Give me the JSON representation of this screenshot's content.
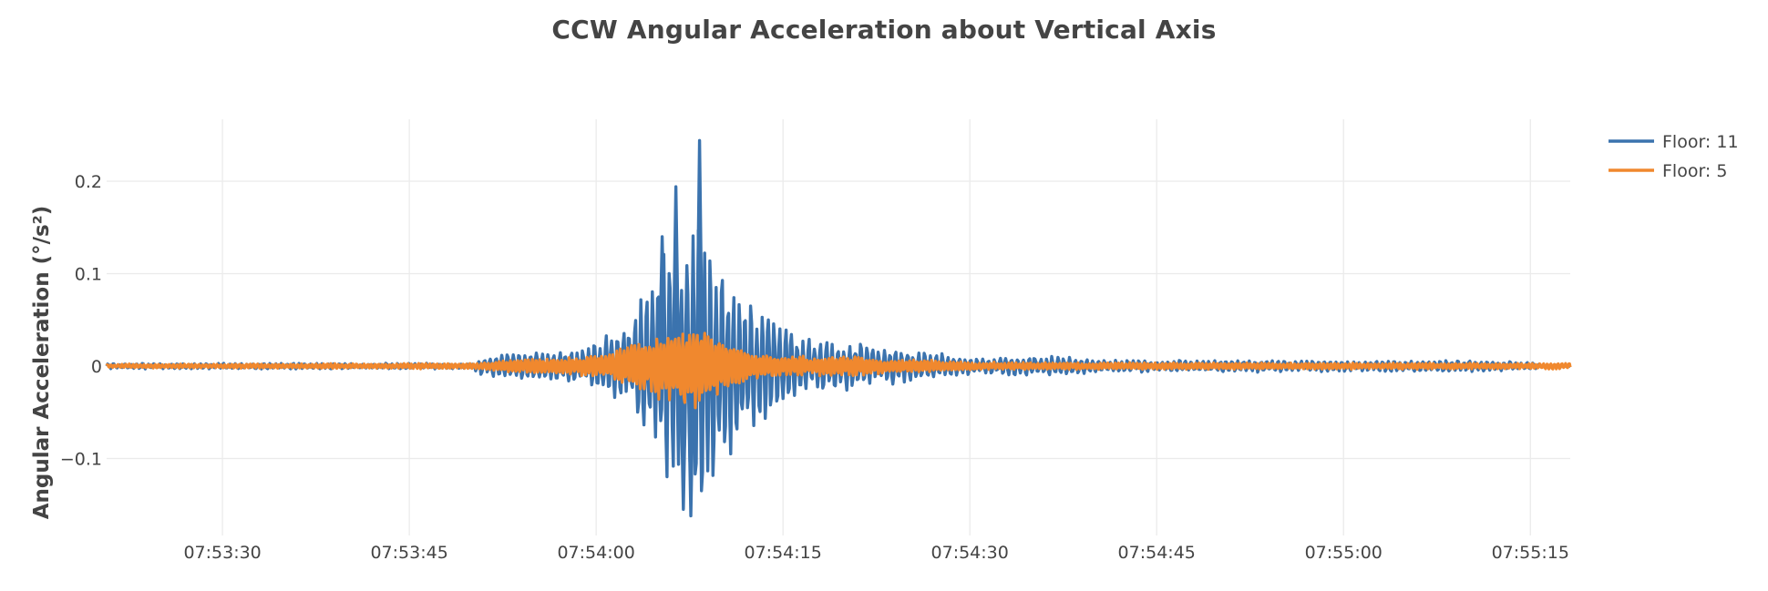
{
  "chart_data": {
    "type": "line",
    "title": "CCW Angular Acceleration about Vertical Axis",
    "xlabel": "",
    "ylabel": "Angular Acceleration (°/s²)",
    "x_range": [
      "07:53:20.7",
      "07:55:18.2"
    ],
    "x_ticks": [
      "07:53:30",
      "07:53:45",
      "07:54:00",
      "07:54:15",
      "07:54:30",
      "07:54:45",
      "07:55:00",
      "07:55:15"
    ],
    "ylim": [
      -0.165,
      0.265
    ],
    "y_ticks": [
      0.2,
      0.1,
      0,
      -0.1
    ],
    "y_tick_labels": [
      "0.2",
      "0.1",
      "0",
      "−0.1"
    ],
    "grid": true,
    "legend_position": "top-right",
    "series": [
      {
        "name": "Floor: 11",
        "color": "#3b73ae",
        "summary": {
          "baseline_noise": 0.003,
          "motion_onset": "07:53:50.5",
          "peak_time": "07:54:08.3",
          "max": 0.244,
          "min": -0.162,
          "notable_peaks": [
            {
              "t": "07:54:06.4",
              "v": 0.194
            },
            {
              "t": "07:54:05.3",
              "v": 0.14
            },
            {
              "t": "07:54:08.3",
              "v": 0.244
            },
            {
              "t": "07:54:07.6",
              "v": -0.162
            },
            {
              "t": "07:54:07.0",
              "v": -0.155
            }
          ],
          "decay_end": "07:55:16"
        },
        "envelope": [
          {
            "t": 0,
            "a": 0.003
          },
          {
            "t": 29.5,
            "a": 0.003
          },
          {
            "t": 30.0,
            "a": 0.012
          },
          {
            "t": 38.0,
            "a": 0.018
          },
          {
            "t": 42.0,
            "a": 0.045
          },
          {
            "t": 45.0,
            "a": 0.12
          },
          {
            "t": 47.6,
            "a": 0.2
          },
          {
            "t": 49.0,
            "a": 0.11
          },
          {
            "t": 52.0,
            "a": 0.07
          },
          {
            "t": 56.0,
            "a": 0.03
          },
          {
            "t": 63.0,
            "a": 0.02
          },
          {
            "t": 70.0,
            "a": 0.008
          },
          {
            "t": 74.0,
            "a": 0.012
          },
          {
            "t": 80.0,
            "a": 0.007
          },
          {
            "t": 95.0,
            "a": 0.006
          },
          {
            "t": 110.0,
            "a": 0.006
          },
          {
            "t": 114.5,
            "a": 0.004
          },
          {
            "t": 115.5,
            "a": 0.0
          },
          {
            "t": 117.5,
            "a": 0.0
          }
        ]
      },
      {
        "name": "Floor: 5",
        "color": "#f0882e",
        "summary": {
          "baseline_noise": 0.002,
          "max": 0.057,
          "min": -0.06,
          "peak_time": "07:54:08.0"
        },
        "envelope": [
          {
            "t": 0,
            "a": 0.002
          },
          {
            "t": 29.5,
            "a": 0.003
          },
          {
            "t": 34.0,
            "a": 0.008
          },
          {
            "t": 40.0,
            "a": 0.012
          },
          {
            "t": 43.0,
            "a": 0.03
          },
          {
            "t": 47.3,
            "a": 0.05
          },
          {
            "t": 49.0,
            "a": 0.03
          },
          {
            "t": 53.0,
            "a": 0.012
          },
          {
            "t": 60.0,
            "a": 0.01
          },
          {
            "t": 70.0,
            "a": 0.004
          },
          {
            "t": 117.5,
            "a": 0.003
          }
        ]
      }
    ]
  },
  "legend": {
    "items": [
      {
        "label": "Floor: 11",
        "color": "#3b73ae"
      },
      {
        "label": "Floor: 5",
        "color": "#f0882e"
      }
    ]
  }
}
